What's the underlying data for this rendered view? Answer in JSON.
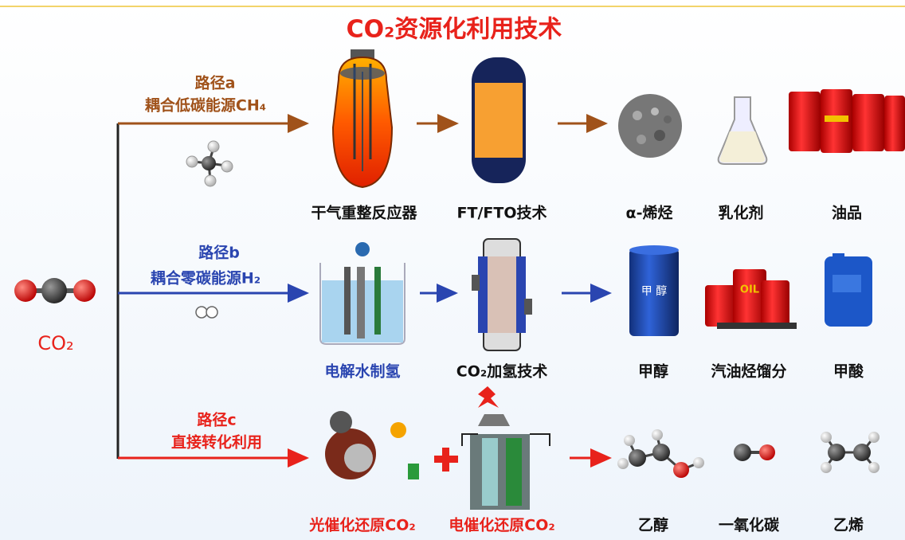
{
  "title": "CO₂资源化利用技术",
  "source": {
    "label": "CO₂"
  },
  "routes": [
    {
      "name": "路径a",
      "description": "耦合低碳能源CH₄",
      "steps": [
        {
          "label": "干气重整反应器"
        },
        {
          "label": "FT/FTO技术"
        }
      ],
      "products": [
        {
          "label": "α-烯烃"
        },
        {
          "label": "乳化剂"
        },
        {
          "label": "油品"
        }
      ]
    },
    {
      "name": "路径b",
      "description": "耦合零碳能源H₂",
      "steps": [
        {
          "label": "电解水制氢"
        },
        {
          "label": "CO₂加氢技术"
        }
      ],
      "products": [
        {
          "label": "甲醇",
          "icon_text": "甲 醇"
        },
        {
          "label": "汽油烃馏分",
          "icon_text": "OIL"
        },
        {
          "label": "甲酸"
        }
      ]
    },
    {
      "name": "路径c",
      "description": "直接转化利用",
      "steps": [
        {
          "label": "光催化还原CO₂"
        },
        {
          "label": "电催化还原CO₂"
        }
      ],
      "products": [
        {
          "label": "乙醇"
        },
        {
          "label": "一氧化碳"
        },
        {
          "label": "乙烯"
        }
      ]
    }
  ]
}
